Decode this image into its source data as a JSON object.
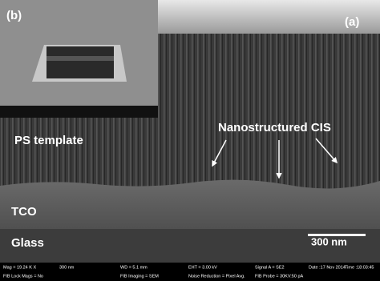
{
  "panel_labels": {
    "a": "(a)",
    "b": "(b)"
  },
  "annotations": {
    "ps_template": "PS template",
    "nanostructured": "Nanostructured CIS",
    "tco": "TCO",
    "glass": "Glass",
    "scale_bar": "300 nm"
  },
  "info_bar": {
    "row1": [
      "Mag = 19.24 K X",
      "WD = 5.1 mm",
      "EHT = 3.00 kV",
      "Signal A = SE2",
      "Date :17 Nov 2014",
      "Time :18:03:45"
    ],
    "row2": [
      "FIB Lock Mags = No",
      "FIB Imaging = SEM",
      "Noise Reduction = Pixel Avg.",
      "FIB Probe = 30KV:50 pA"
    ],
    "scale": "300 nm"
  }
}
